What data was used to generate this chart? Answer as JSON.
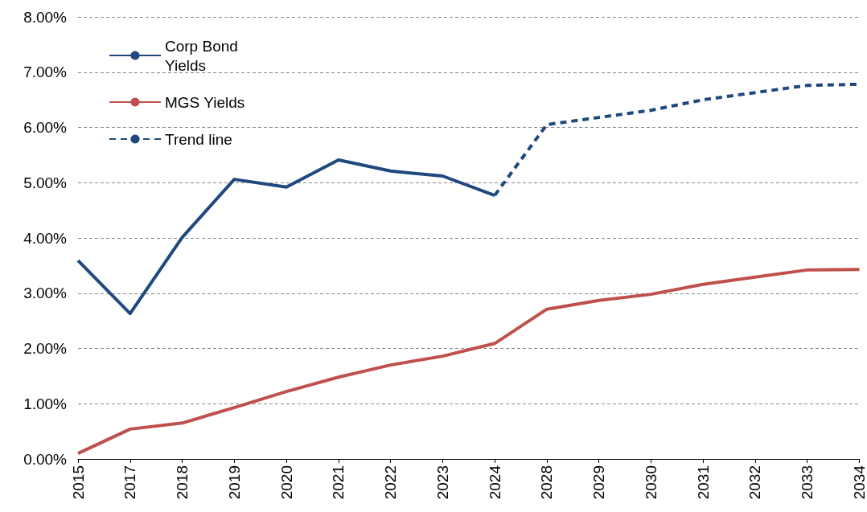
{
  "chart_data": {
    "type": "line",
    "categories": [
      "2015",
      "2017",
      "2018",
      "2019",
      "2020",
      "2021",
      "2022",
      "2023",
      "2024",
      "2028",
      "2029",
      "2030",
      "2031",
      "2032",
      "2033",
      "2034"
    ],
    "series": [
      {
        "name": "Corp Bond Yields",
        "color": "#1f497d",
        "line_style": "solid",
        "values": [
          3.59,
          2.63,
          4.01,
          5.06,
          4.92,
          5.41,
          5.21,
          5.12,
          4.77,
          null,
          null,
          null,
          null,
          null,
          null,
          null
        ]
      },
      {
        "name": "MGS Yields",
        "color": "#c0504d",
        "line_style": "solid",
        "values": [
          0.1,
          0.54,
          0.65,
          0.93,
          1.22,
          1.48,
          1.7,
          1.86,
          2.09,
          2.71,
          2.87,
          2.98,
          3.16,
          3.29,
          3.42,
          3.43
        ]
      },
      {
        "name": "Trend line",
        "color": "#1f497d",
        "line_style": "dashed",
        "values": [
          null,
          null,
          null,
          null,
          null,
          null,
          null,
          null,
          4.77,
          6.05,
          6.18,
          6.31,
          6.5,
          6.63,
          6.76,
          6.78
        ]
      }
    ],
    "ylim": [
      0,
      8
    ],
    "yticks": [
      {
        "value": 0,
        "label": "0.00%"
      },
      {
        "value": 1,
        "label": "1.00%"
      },
      {
        "value": 2,
        "label": "2.00%"
      },
      {
        "value": 3,
        "label": "3.00%"
      },
      {
        "value": 4,
        "label": "4.00%"
      },
      {
        "value": 5,
        "label": "5.00%"
      },
      {
        "value": 6,
        "label": "6.00%"
      },
      {
        "value": 7,
        "label": "7.00%"
      },
      {
        "value": 8,
        "label": "8.00%"
      }
    ],
    "grid": "y",
    "legend": "top left",
    "marker": "none"
  }
}
